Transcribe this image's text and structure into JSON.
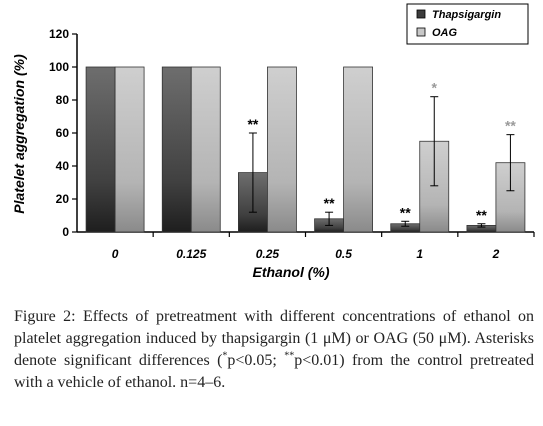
{
  "chart_data": {
    "type": "bar",
    "title": "",
    "xlabel": "Ethanol (%)",
    "ylabel": "Platelet aggregation (%)",
    "ylim": [
      0,
      120
    ],
    "yticks": [
      0,
      20,
      40,
      60,
      80,
      100,
      120
    ],
    "categories": [
      "0",
      "0.125",
      "0.25",
      "0.5",
      "1",
      "2"
    ],
    "legend_position": "top-right",
    "grid": false,
    "series": [
      {
        "name": "Thapsigargin",
        "color": "#5a5a5a",
        "values": [
          100,
          100,
          36,
          8,
          5,
          4
        ],
        "errors": [
          null,
          null,
          24,
          4,
          1.5,
          1
        ],
        "significance": [
          "",
          "",
          "**",
          "**",
          "**",
          "**"
        ]
      },
      {
        "name": "OAG",
        "color": "#c8c8c8",
        "values": [
          100,
          100,
          100,
          100,
          55,
          42
        ],
        "errors": [
          null,
          null,
          null,
          null,
          27,
          17
        ],
        "significance": [
          "",
          "",
          "",
          "",
          "*",
          "**"
        ]
      }
    ]
  },
  "caption": {
    "figure_label": "Figure 2:",
    "text_part1": " Effects of pretreatment with different concentrations of ethanol on platelet aggregation induced by thapsigargin (1 μM) or OAG (50 μM). Asterisks denote significant differences (",
    "sup1": "*",
    "text_part2": "p<0.05; ",
    "sup2": "**",
    "text_part3": "p<0.01) from the control pretreated with a vehicle of ethanol. n=4–6."
  }
}
